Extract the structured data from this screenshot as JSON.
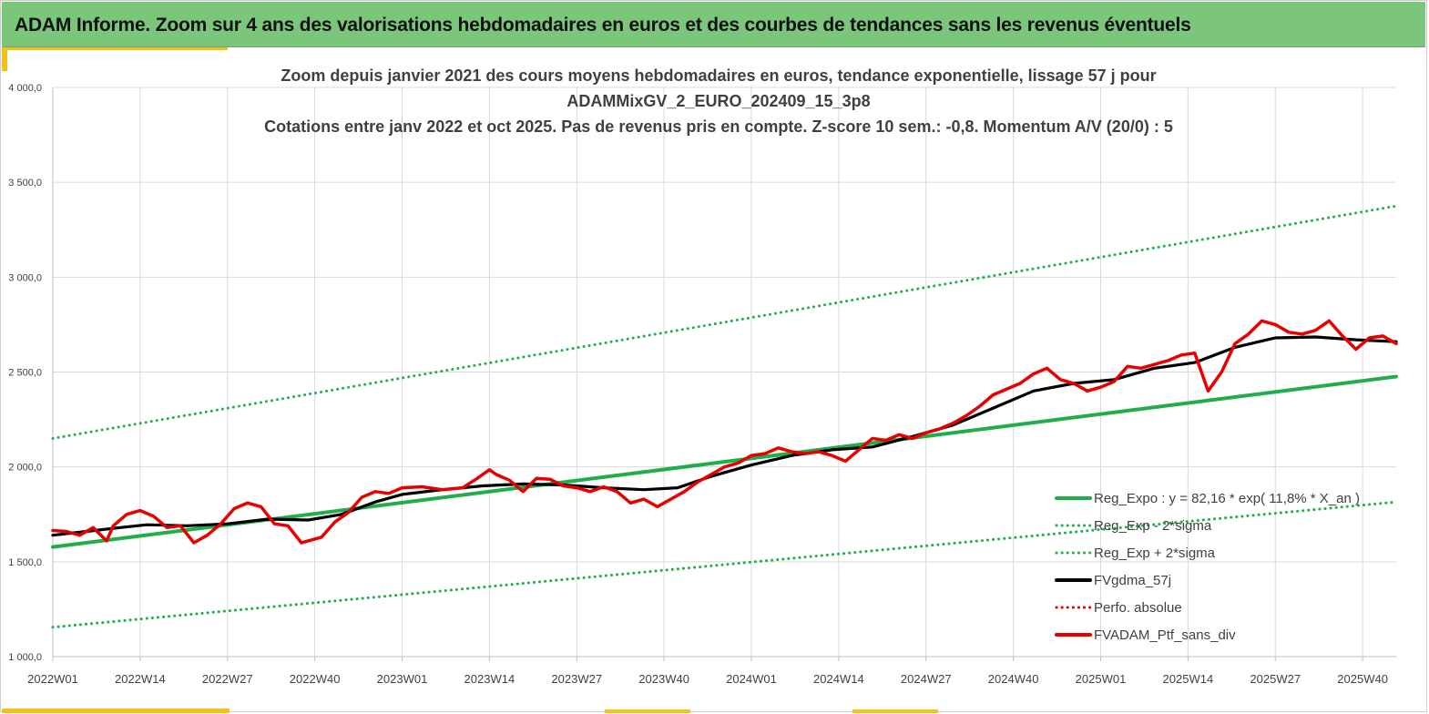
{
  "banner": {
    "title": "ADAM Informe. Zoom sur 4 ans des valorisations hebdomadaires en euros et des courbes de tendances sans les revenus éventuels",
    "background_color": "#7bc67b"
  },
  "chart_data": {
    "type": "line",
    "title_lines": [
      "Zoom depuis janvier 2021 des cours moyens hebdomadaires  en euros, tendance exponentielle, lissage 57 j pour",
      "ADAMMixGV_2_EURO_202409_15_3p8",
      "Cotations  entre janv 2022 et oct 2025. Pas de revenus pris en compte. Z-score 10 sem.: -0,8. Momentum A/V (20/0) : 5"
    ],
    "ylim": [
      1000,
      4000
    ],
    "y_ticks": [
      "1 000,0",
      "1 500,0",
      "2 000,0",
      "2 500,0",
      "3 000,0",
      "3 500,0",
      "4 000,0"
    ],
    "y_tick_values": [
      1000,
      1500,
      2000,
      2500,
      3000,
      3500,
      4000
    ],
    "x_ticks": [
      "2022W01",
      "2022W14",
      "2022W27",
      "2022W40",
      "2023W01",
      "2023W14",
      "2023W27",
      "2023W40",
      "2024W01",
      "2024W14",
      "2024W27",
      "2024W40",
      "2025W01",
      "2025W14",
      "2025W27",
      "2025W40"
    ],
    "x_tick_weeks": [
      0,
      13,
      26,
      39,
      52,
      65,
      78,
      91,
      104,
      117,
      130,
      143,
      156,
      169,
      182,
      195
    ],
    "x_range_weeks": [
      0,
      200
    ],
    "grid": true,
    "legend_position": "bottom-right",
    "series": [
      {
        "name": "Reg_Expo : y = 82,16 * exp( 11,8% *  X_an )",
        "style": "solid",
        "color": "#1fae4b",
        "x_weeks": [
          0,
          200
        ],
        "values": [
          1578,
          2476
        ]
      },
      {
        "name": "Reg_Exp - 2*sigma",
        "style": "dotted",
        "color": "#1fae4b",
        "x_weeks": [
          0,
          200
        ],
        "values": [
          1155,
          1815
        ]
      },
      {
        "name": "Reg_Exp + 2*sigma",
        "style": "dotted",
        "color": "#1fae4b",
        "x_weeks": [
          0,
          200
        ],
        "values": [
          2150,
          3375
        ]
      },
      {
        "name": "FVgdma_57j",
        "style": "solid",
        "color": "#000000",
        "x_weeks": [
          0,
          5,
          10,
          14,
          20,
          26,
          32,
          38,
          43,
          48,
          52,
          58,
          64,
          70,
          76,
          82,
          88,
          93,
          98,
          104,
          110,
          116,
          122,
          128,
          134,
          140,
          146,
          152,
          158,
          164,
          170,
          176,
          182,
          188,
          194,
          200
        ],
        "values": [
          1640,
          1660,
          1680,
          1695,
          1690,
          1700,
          1725,
          1720,
          1750,
          1815,
          1855,
          1880,
          1900,
          1910,
          1905,
          1890,
          1880,
          1890,
          1950,
          2010,
          2060,
          2090,
          2105,
          2160,
          2220,
          2310,
          2400,
          2440,
          2460,
          2520,
          2550,
          2630,
          2680,
          2685,
          2670,
          2660
        ]
      },
      {
        "name": "Perfo. absolue",
        "style": "dotted",
        "color": "#e00000",
        "x_weeks": [],
        "values": []
      },
      {
        "name": "FVADAM_Ptf_sans_div",
        "style": "solid",
        "color": "#e80000",
        "x_weeks": [
          0,
          2,
          4,
          6,
          8,
          9,
          11,
          13,
          15,
          17,
          19,
          21,
          23,
          25,
          27,
          29,
          31,
          33,
          35,
          37,
          38,
          40,
          42,
          44,
          46,
          48,
          50,
          52,
          55,
          58,
          61,
          63,
          65,
          66,
          68,
          70,
          72,
          74,
          76,
          78,
          80,
          82,
          84,
          86,
          88,
          90,
          92,
          94,
          96,
          98,
          100,
          102,
          104,
          106,
          108,
          110,
          112,
          114,
          116,
          118,
          120,
          122,
          124,
          126,
          128,
          130,
          132,
          134,
          136,
          138,
          140,
          142,
          144,
          146,
          148,
          150,
          152,
          154,
          156,
          158,
          160,
          162,
          164,
          166,
          168,
          170,
          172,
          174,
          176,
          178,
          180,
          182,
          184,
          186,
          188,
          190,
          192,
          194,
          196,
          198,
          200
        ],
        "values": [
          1665,
          1660,
          1640,
          1680,
          1610,
          1690,
          1750,
          1770,
          1740,
          1680,
          1690,
          1600,
          1640,
          1700,
          1780,
          1810,
          1790,
          1700,
          1690,
          1600,
          1610,
          1630,
          1710,
          1760,
          1840,
          1870,
          1860,
          1890,
          1895,
          1880,
          1890,
          1935,
          1985,
          1960,
          1930,
          1870,
          1940,
          1935,
          1900,
          1890,
          1870,
          1895,
          1870,
          1810,
          1830,
          1790,
          1830,
          1870,
          1920,
          1960,
          2000,
          2020,
          2060,
          2070,
          2100,
          2080,
          2070,
          2080,
          2060,
          2030,
          2090,
          2150,
          2140,
          2170,
          2150,
          2180,
          2200,
          2230,
          2270,
          2320,
          2380,
          2410,
          2440,
          2490,
          2520,
          2460,
          2440,
          2400,
          2420,
          2450,
          2530,
          2520,
          2540,
          2560,
          2590,
          2600,
          2400,
          2500,
          2650,
          2700,
          2770,
          2750,
          2710,
          2700,
          2720,
          2770,
          2690,
          2620,
          2680,
          2690,
          2650
        ]
      }
    ]
  }
}
